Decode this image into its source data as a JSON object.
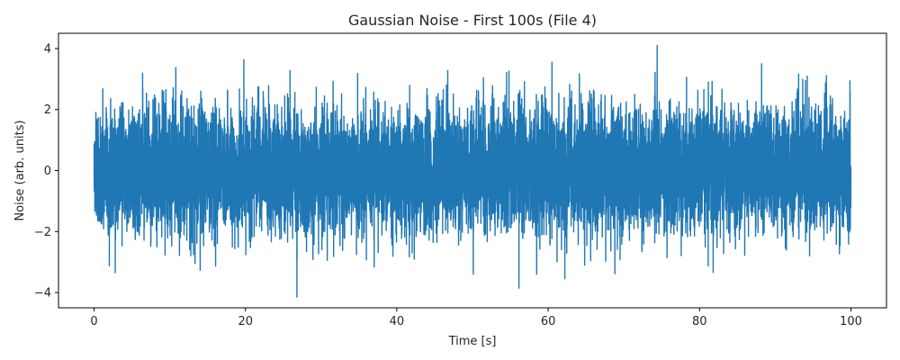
{
  "chart_data": {
    "type": "line",
    "title": "Gaussian Noise - First 100s (File 4)",
    "xlabel": "Time [s]",
    "ylabel": "Noise (arb. units)",
    "xlim": [
      -4.7,
      104.7
    ],
    "ylim": [
      -4.5,
      4.5
    ],
    "x_ticks": [
      0,
      20,
      40,
      60,
      80,
      100
    ],
    "y_ticks": [
      -4,
      -2,
      0,
      2,
      4
    ],
    "x_tick_labels": [
      "0",
      "20",
      "40",
      "60",
      "80",
      "100"
    ],
    "y_tick_labels": [
      "−4",
      "−2",
      "0",
      "2",
      "4"
    ],
    "grid": false,
    "legend": "none",
    "series": [
      {
        "color": "#1f77b4",
        "sampling": "approx. 0.01 s spacing, 0-100 s, zero-mean unit-variance Gaussian noise",
        "notable_points": [
          {
            "x": 74.4,
            "y": 4.1
          },
          {
            "x": 26.8,
            "y": -4.15
          },
          {
            "x": 2.8,
            "y": -3.35
          },
          {
            "x": 62.2,
            "y": -3.55
          },
          {
            "x": 60.5,
            "y": 3.55
          },
          {
            "x": 88.2,
            "y": 3.5
          },
          {
            "x": 50.1,
            "y": -3.4
          }
        ],
        "y_range": [
          -4.15,
          4.1
        ]
      }
    ]
  }
}
